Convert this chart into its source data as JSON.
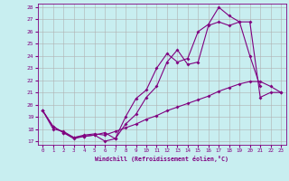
{
  "xlabel": "Windchill (Refroidissement éolien,°C)",
  "xlim": [
    -0.5,
    23.5
  ],
  "ylim": [
    16.7,
    28.3
  ],
  "yticks": [
    17,
    18,
    19,
    20,
    21,
    22,
    23,
    24,
    25,
    26,
    27,
    28
  ],
  "xticks": [
    0,
    1,
    2,
    3,
    4,
    5,
    6,
    7,
    8,
    9,
    10,
    11,
    12,
    13,
    14,
    15,
    16,
    17,
    18,
    19,
    20,
    21,
    22,
    23
  ],
  "bg_color": "#c8eef0",
  "grid_color": "#b0b0b0",
  "line_color": "#800080",
  "line1_x": [
    0,
    1,
    2,
    3,
    4,
    5,
    6,
    7,
    8,
    9,
    10,
    11,
    12,
    13,
    14,
    15,
    16,
    17,
    18,
    19,
    20,
    21
  ],
  "line1_y": [
    19.5,
    18.2,
    17.7,
    17.2,
    17.4,
    17.5,
    17.7,
    17.2,
    19.0,
    20.5,
    21.2,
    23.0,
    24.2,
    23.5,
    23.8,
    26.0,
    26.6,
    28.0,
    27.3,
    26.8,
    24.0,
    21.5
  ],
  "line2_x": [
    0,
    1,
    2,
    3,
    4,
    5,
    6,
    7,
    8,
    9,
    10,
    11,
    12,
    13,
    14,
    15,
    16,
    17,
    18,
    19,
    20,
    21,
    22,
    23
  ],
  "line2_y": [
    19.5,
    18.2,
    17.7,
    17.3,
    17.4,
    17.5,
    17.0,
    17.2,
    18.4,
    19.2,
    20.6,
    21.5,
    23.5,
    24.5,
    23.3,
    23.5,
    26.5,
    26.8,
    26.5,
    26.8,
    26.8,
    20.6,
    21.0,
    21.0
  ],
  "line3_x": [
    0,
    1,
    2,
    3,
    4,
    5,
    6,
    7,
    8,
    9,
    10,
    11,
    12,
    13,
    14,
    15,
    16,
    17,
    18,
    19,
    20,
    21,
    22,
    23
  ],
  "line3_y": [
    19.5,
    18.0,
    17.8,
    17.3,
    17.5,
    17.6,
    17.5,
    17.8,
    18.1,
    18.4,
    18.8,
    19.1,
    19.5,
    19.8,
    20.1,
    20.4,
    20.7,
    21.1,
    21.4,
    21.7,
    21.9,
    21.9,
    21.5,
    21.0
  ]
}
